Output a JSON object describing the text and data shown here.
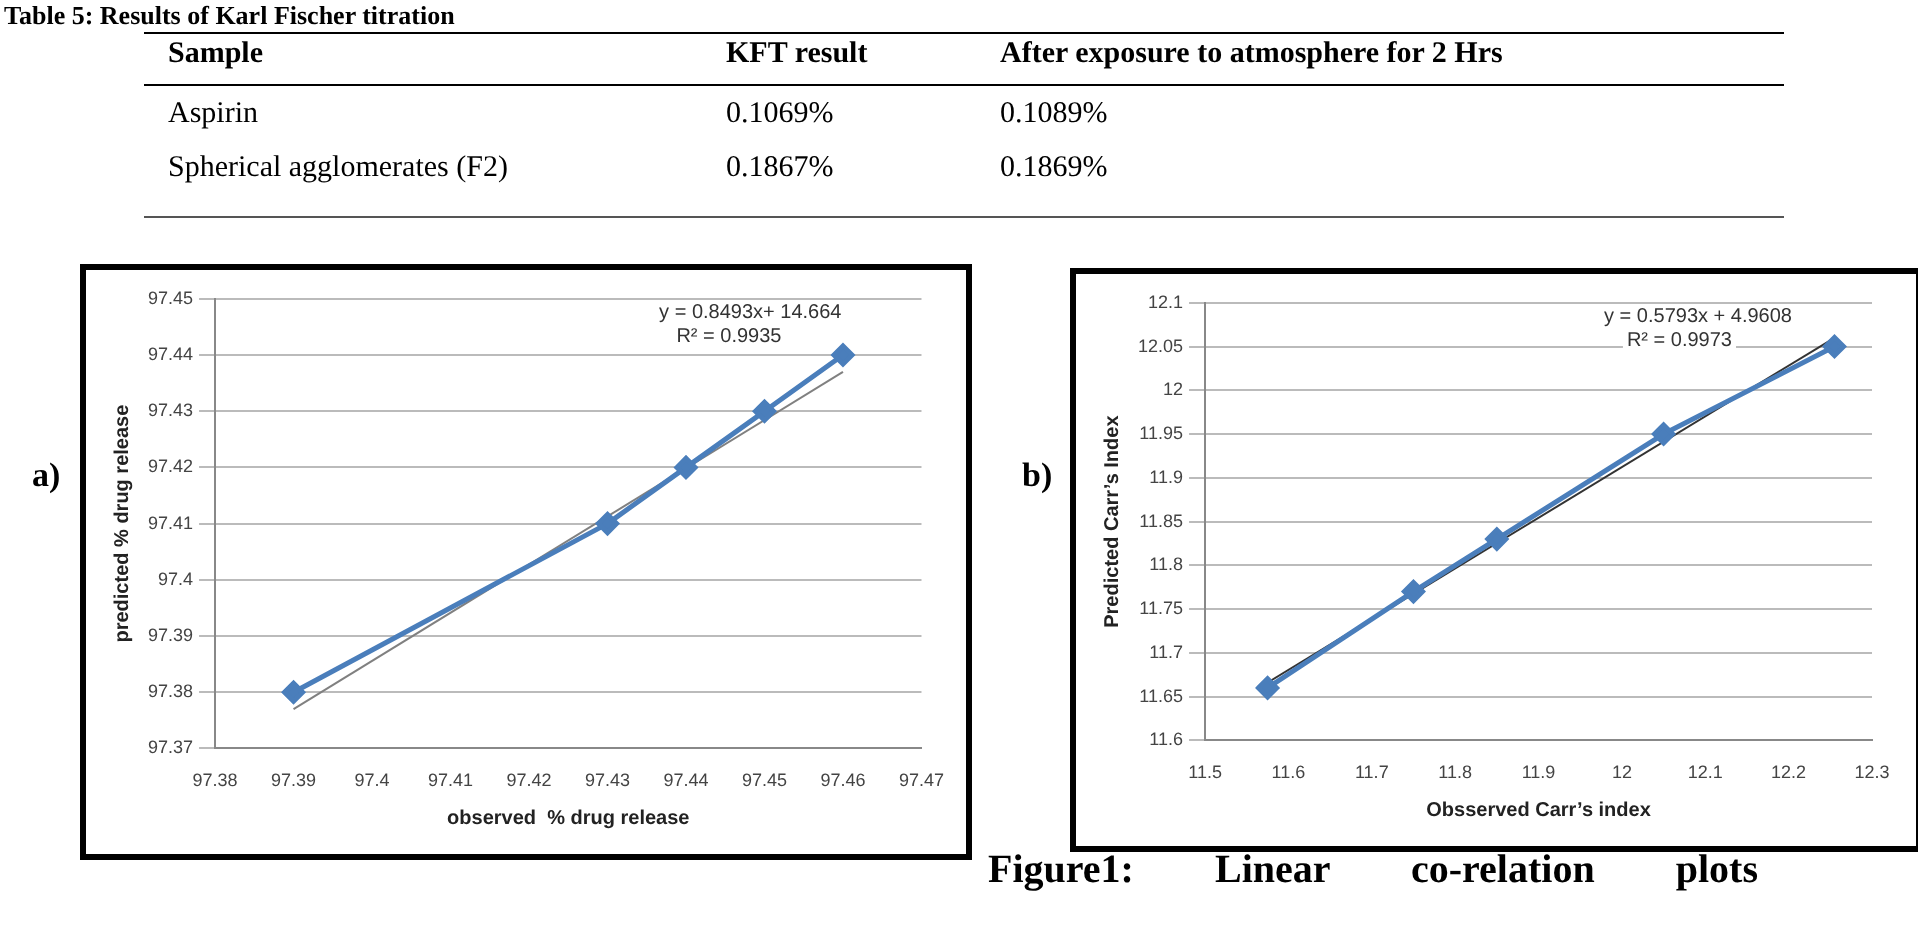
{
  "chart_data": [
    {
      "type": "other",
      "title": "Table 5: Results of Karl Fischer titration",
      "annotations": [
        "Sample",
        "KFT result",
        "After exposure to atmosphere for 2 Hrs",
        "Aspirin",
        "0.1069%",
        "0.1089%",
        "Spherical agglomerates (F2)",
        "0.1867%",
        "0.1869%"
      ]
    },
    {
      "type": "line",
      "xlabel": "observed  % drug release",
      "ylabel": "predicted % drug release",
      "marker": "diamond",
      "grid": "y",
      "legend": false,
      "xlim": [
        97.38,
        97.47
      ],
      "xticks": [
        97.38,
        97.39,
        97.4,
        97.41,
        97.42,
        97.43,
        97.44,
        97.45,
        97.46,
        97.47
      ],
      "ylim": [
        97.37,
        97.45
      ],
      "yticks": [
        97.37,
        97.38,
        97.39,
        97.4,
        97.41,
        97.42,
        97.43,
        97.44,
        97.45
      ],
      "series": [
        {
          "color": "#4a7ebb",
          "x": [
            97.39,
            97.43,
            97.44,
            97.45,
            97.46
          ],
          "values": [
            97.38,
            97.41,
            97.42,
            97.43,
            97.44
          ]
        },
        {
          "color": "#808080",
          "marker": "none",
          "x": [
            97.39,
            97.46
          ],
          "values": [
            97.377,
            97.437
          ]
        }
      ],
      "annotations": [
        "y = 0.8493x+ 14.664",
        "R² = 0.9935",
        "a)"
      ]
    },
    {
      "type": "line",
      "xlabel": "Obsserved Carr’s index",
      "ylabel": "Predicted Carr’s Index",
      "marker": "diamond",
      "grid": "y",
      "legend": false,
      "xlim": [
        11.5,
        12.3
      ],
      "xticks": [
        11.5,
        11.6,
        11.7,
        11.8,
        11.9,
        12,
        12.1,
        12.2,
        12.3
      ],
      "ylim": [
        11.6,
        12.1
      ],
      "yticks": [
        11.6,
        11.65,
        11.7,
        11.75,
        11.8,
        11.85,
        11.9,
        11.95,
        12,
        12.05,
        12.1
      ],
      "series": [
        {
          "color": "#4a7ebb",
          "x": [
            11.575,
            11.75,
            11.85,
            12.05,
            12.255
          ],
          "values": [
            11.66,
            11.77,
            11.83,
            11.95,
            12.05
          ]
        },
        {
          "color": "#333333",
          "marker": "none",
          "x": [
            11.575,
            12.255
          ],
          "values": [
            11.666,
            12.06
          ]
        }
      ],
      "annotations": [
        "y = 0.5793x + 4.9608",
        "R² = 0.9973",
        "b)",
        "Figure1: Linear co-relation plots"
      ]
    }
  ]
}
